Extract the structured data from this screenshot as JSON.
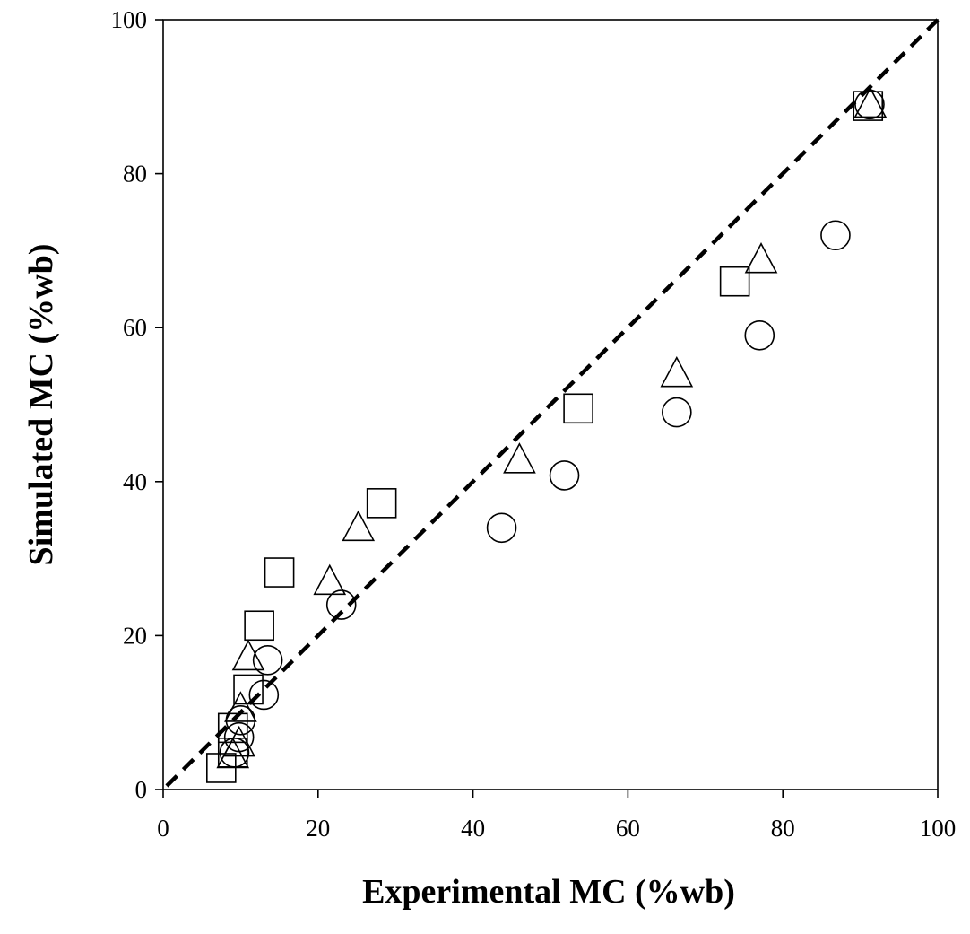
{
  "chart_data": {
    "type": "scatter",
    "xlabel": "Experimental MC (%wb)",
    "ylabel": "Simulated MC (%wb)",
    "xlim": [
      0,
      100
    ],
    "ylim": [
      0,
      100
    ],
    "xticks": [
      0,
      20,
      40,
      60,
      80,
      100
    ],
    "yticks": [
      0,
      20,
      40,
      60,
      80,
      100
    ],
    "grid": false,
    "reference_line": {
      "name": "1:1 line",
      "x": [
        0,
        100
      ],
      "y": [
        0,
        100
      ],
      "style": "dashed"
    },
    "series": [
      {
        "name": "circle",
        "marker": "circle",
        "points": [
          {
            "x": 91.2,
            "y": 89.0
          },
          {
            "x": 86.8,
            "y": 72.0
          },
          {
            "x": 77.0,
            "y": 59.0
          },
          {
            "x": 66.3,
            "y": 49.0
          },
          {
            "x": 51.8,
            "y": 40.8
          },
          {
            "x": 43.7,
            "y": 34.0
          },
          {
            "x": 23.0,
            "y": 24.0
          },
          {
            "x": 13.5,
            "y": 16.8
          },
          {
            "x": 13.0,
            "y": 12.3
          },
          {
            "x": 10.0,
            "y": 9.0
          },
          {
            "x": 9.8,
            "y": 6.8
          },
          {
            "x": 9.2,
            "y": 4.8
          }
        ]
      },
      {
        "name": "triangle",
        "marker": "triangle",
        "points": [
          {
            "x": 91.3,
            "y": 89.0
          },
          {
            "x": 77.2,
            "y": 68.8
          },
          {
            "x": 66.3,
            "y": 54.0
          },
          {
            "x": 46.0,
            "y": 42.8
          },
          {
            "x": 25.2,
            "y": 34.0
          },
          {
            "x": 21.5,
            "y": 27.0
          },
          {
            "x": 11.0,
            "y": 17.2
          },
          {
            "x": 10.0,
            "y": 10.5
          },
          {
            "x": 9.8,
            "y": 6.0
          },
          {
            "x": 9.0,
            "y": 4.5
          }
        ]
      },
      {
        "name": "square",
        "marker": "square",
        "points": [
          {
            "x": 91.0,
            "y": 88.8
          },
          {
            "x": 73.8,
            "y": 66.0
          },
          {
            "x": 53.6,
            "y": 49.5
          },
          {
            "x": 28.2,
            "y": 37.2
          },
          {
            "x": 15.0,
            "y": 28.2
          },
          {
            "x": 12.4,
            "y": 21.3
          },
          {
            "x": 11.0,
            "y": 13.0
          },
          {
            "x": 9.0,
            "y": 8.0
          },
          {
            "x": 9.0,
            "y": 4.8
          },
          {
            "x": 7.5,
            "y": 2.8
          }
        ]
      }
    ]
  }
}
